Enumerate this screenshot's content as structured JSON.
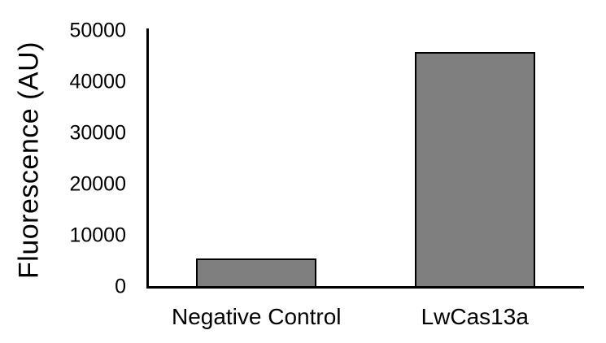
{
  "chart_data": {
    "type": "bar",
    "title": "",
    "ylabel": "Fluorescence (AU)",
    "xlabel": "",
    "categories": [
      "Negative Control",
      "LwCas13a"
    ],
    "values": [
      5500,
      45800
    ],
    "ylim": [
      0,
      50000
    ],
    "yticks": [
      0,
      10000,
      20000,
      30000,
      40000,
      50000
    ],
    "grid": false,
    "legend": false,
    "colors": {
      "bar_fill": "#7f7f7f",
      "bar_border": "#000000",
      "axis": "#000000",
      "text": "#000000"
    }
  }
}
